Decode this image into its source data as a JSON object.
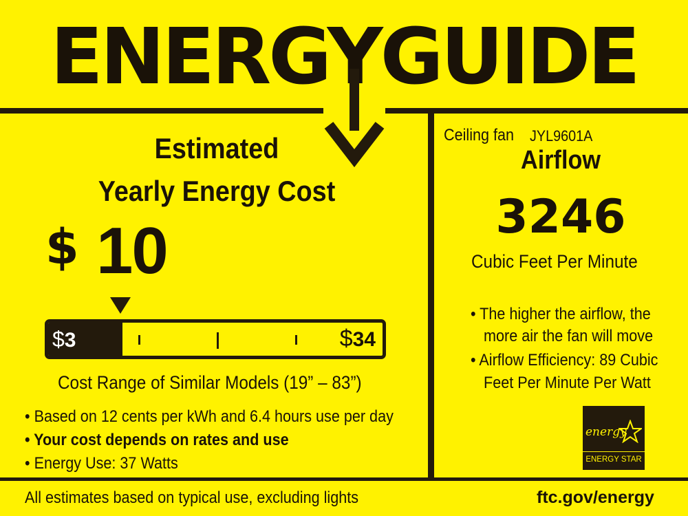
{
  "header": {
    "title": "ENERGYGUIDE"
  },
  "cost": {
    "heading_line1": "Estimated",
    "heading_line2": "Yearly Energy Cost",
    "currency": "$",
    "value": "10",
    "range_low_symbol": "$",
    "range_low": "3",
    "range_high_symbol": "$",
    "range_high": "34",
    "range_caption": "Cost Range of Similar Models (19” – 83”)"
  },
  "notes": [
    "• Based on 12 cents per kWh and 6.4 hours use per day",
    "• Your cost depends on rates and use",
    "• Energy Use: 37 Watts"
  ],
  "product": {
    "type": "Ceiling fan",
    "model": "JYL9601A"
  },
  "airflow": {
    "heading": "Airflow",
    "value": "3246",
    "unit": "Cubic Feet Per Minute",
    "bullet1_line1": "• The higher the airflow, the",
    "bullet1_line2": "more air the fan will move",
    "bullet2_line1": "• Airflow Efficiency: 89 Cubic",
    "bullet2_line2": "Feet Per Minute Per Watt"
  },
  "energy_star": {
    "script": "energy",
    "label": "ENERGY STAR"
  },
  "footer": {
    "disclaimer": "All estimates based on typical use, excluding lights",
    "link": "ftc.gov/energy"
  },
  "colors": {
    "background": "#fff200",
    "ink": "#231a0c"
  }
}
